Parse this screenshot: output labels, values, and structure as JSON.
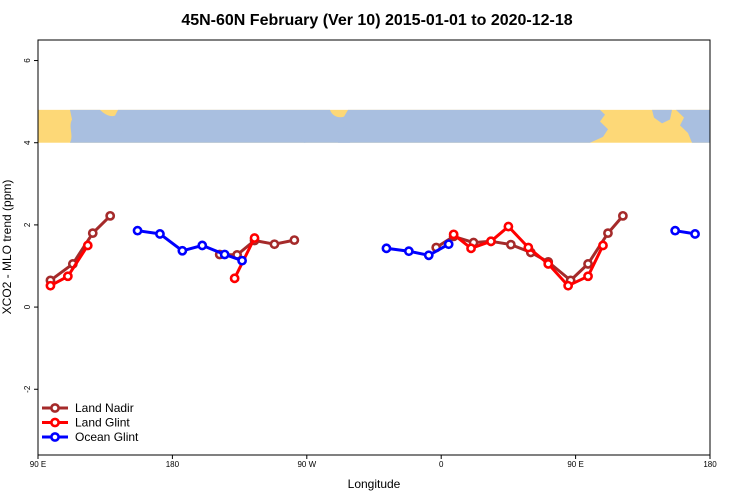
{
  "chart_data": {
    "type": "line",
    "title": "45N-60N February (Ver 10)   2015-01-01 to 2020-12-18",
    "xlabel": "Longitude",
    "ylabel": "XCO2 - MLO trend (ppm)",
    "xlim": [
      -90,
      180
    ],
    "ylim": [
      -3.6,
      6.5
    ],
    "x_ticks": [
      {
        "value": -90,
        "label": "90 E"
      },
      {
        "value": -36,
        "label": "180"
      },
      {
        "value": 18,
        "label": "90 W"
      },
      {
        "value": 72,
        "label": "0"
      },
      {
        "value": 126,
        "label": "90 E"
      },
      {
        "value": 180,
        "label": "180"
      }
    ],
    "y_ticks": [
      {
        "value": -2,
        "label": "-2"
      },
      {
        "value": 0,
        "label": "0"
      },
      {
        "value": 2,
        "label": "2"
      },
      {
        "value": 4,
        "label": "4"
      },
      {
        "value": 6,
        "label": "6"
      }
    ],
    "map_band": {
      "ymin": 4.0,
      "ymax": 4.8,
      "ocean_color": "#a9bfe0",
      "land_color": "#fdd877"
    },
    "legend_position": "bottom-left",
    "series": [
      {
        "name": "Land Nadir",
        "color": "#a52a2a",
        "segments": [
          [
            [
              -85,
              0.65
            ],
            [
              -76,
              1.05
            ],
            [
              -68,
              1.8
            ],
            [
              -61,
              2.22
            ]
          ],
          [
            [
              -17,
              1.28
            ],
            [
              -10,
              1.27
            ],
            [
              -3,
              1.62
            ],
            [
              5,
              1.53
            ],
            [
              13,
              1.63
            ]
          ],
          [
            [
              70,
              1.45
            ],
            [
              77,
              1.72
            ],
            [
              85,
              1.57
            ],
            [
              92,
              1.6
            ],
            [
              100,
              1.52
            ],
            [
              108,
              1.33
            ],
            [
              115,
              1.1
            ],
            [
              124,
              0.65
            ],
            [
              131,
              1.05
            ],
            [
              139,
              1.8
            ],
            [
              145,
              2.22
            ]
          ]
        ]
      },
      {
        "name": "Land Glint",
        "color": "#ff0000",
        "segments": [
          [
            [
              -85,
              0.52
            ],
            [
              -78,
              0.75
            ],
            [
              -70,
              1.5
            ]
          ],
          [
            [
              -11,
              0.7
            ],
            [
              -3,
              1.68
            ]
          ],
          [
            [
              77,
              1.77
            ],
            [
              84,
              1.43
            ],
            [
              92,
              1.6
            ],
            [
              99,
              1.96
            ],
            [
              107,
              1.45
            ],
            [
              115,
              1.05
            ],
            [
              123,
              0.52
            ],
            [
              131,
              0.75
            ],
            [
              137,
              1.5
            ]
          ]
        ]
      },
      {
        "name": "Ocean Glint",
        "color": "#0000ff",
        "segments": [
          [
            [
              -50,
              1.86
            ],
            [
              -41,
              1.78
            ],
            [
              -32,
              1.37
            ],
            [
              -24,
              1.5
            ],
            [
              -15,
              1.28
            ],
            [
              -8,
              1.13
            ]
          ],
          [
            [
              50,
              1.43
            ],
            [
              59,
              1.36
            ],
            [
              67,
              1.26
            ],
            [
              75,
              1.53
            ]
          ],
          [
            [
              166,
              1.86
            ],
            [
              174,
              1.78
            ]
          ]
        ]
      }
    ]
  }
}
